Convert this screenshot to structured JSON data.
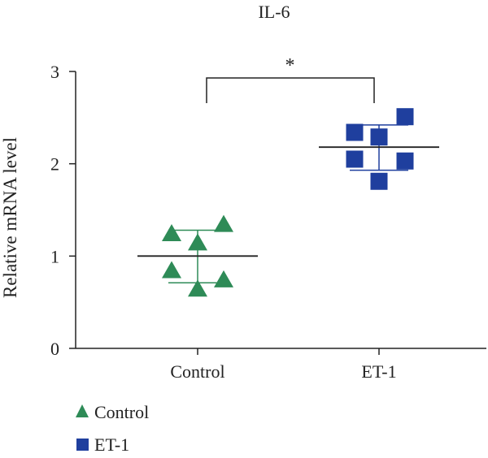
{
  "chart_data": {
    "type": "scatter",
    "title": "IL-6",
    "ylabel": "Relative mRNA level",
    "xlabel": "",
    "ylim": [
      0,
      3
    ],
    "yticks": [
      0,
      1,
      2,
      3
    ],
    "categories": [
      "Control",
      "ET-1"
    ],
    "grid": false,
    "legend_placement": "bottom-left",
    "series": [
      {
        "name": "Control",
        "marker": "triangle",
        "color": "#2e8b57",
        "values": [
          1.24,
          1.34,
          1.14,
          0.84,
          0.74,
          0.64
        ],
        "mean": 1.0,
        "sd_upper": 1.28,
        "sd_lower": 0.71
      },
      {
        "name": "ET-1",
        "marker": "square",
        "color": "#1f3f9e",
        "values": [
          2.34,
          2.29,
          2.51,
          2.05,
          2.03,
          1.81
        ],
        "mean": 2.18,
        "sd_upper": 2.42,
        "sd_lower": 1.93
      }
    ],
    "annotation": {
      "text": "*",
      "between": [
        "Control",
        "ET-1"
      ]
    }
  }
}
